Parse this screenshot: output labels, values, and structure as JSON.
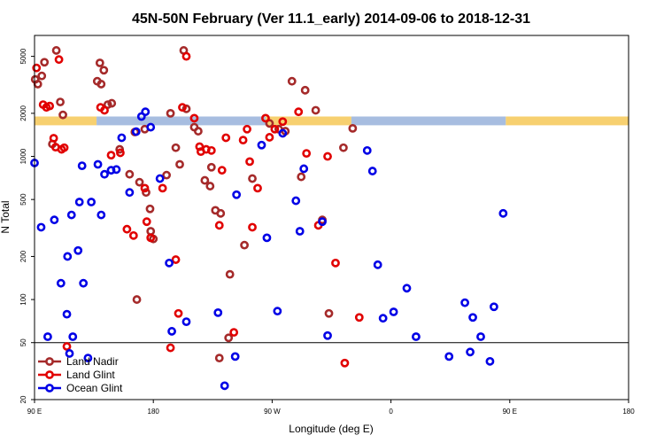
{
  "chart_data": {
    "type": "scatter",
    "title": "45N-50N February (Ver 11.1_early)   2014-09-06 to 2018-12-31",
    "xlabel": "Longitude (deg E)",
    "ylabel": "N Total",
    "x_scale": "longitude, 90E to 180 wrapping around",
    "y_scale": "log",
    "ylim": [
      20,
      7000
    ],
    "x_ticks": [
      "90 E",
      "180",
      "90 W",
      "0",
      "90 E",
      "180"
    ],
    "y_ticks": [
      "20",
      "50",
      "100",
      "200",
      "500",
      "1000",
      "2000",
      "5000"
    ],
    "reference_line_y": 50,
    "band": {
      "y_range": [
        1650,
        1900
      ],
      "colors": [
        "#f7d070",
        "#a7bde0"
      ]
    },
    "legend": {
      "position": "bottom-left",
      "entries": [
        "Land Nadir",
        "Land Glint",
        "Ocean Glint"
      ]
    },
    "series": [
      {
        "name": "Land Nadir",
        "color": "#a52a2a",
        "points": [
          [
            90.5,
            3450
          ],
          [
            92.5,
            3200
          ],
          [
            95.5,
            3650
          ],
          [
            97.5,
            4550
          ],
          [
            103.5,
            1220
          ],
          [
            106.5,
            5500
          ],
          [
            109.5,
            2400
          ],
          [
            111.5,
            1950
          ],
          [
            137.5,
            3350
          ],
          [
            140.5,
            3200
          ],
          [
            139.5,
            4500
          ],
          [
            142.5,
            4000
          ],
          [
            145.5,
            2300
          ],
          [
            148.5,
            2350
          ],
          [
            154.5,
            1120
          ],
          [
            162,
            750
          ],
          [
            166,
            1480
          ],
          [
            169.5,
            660
          ],
          [
            167.5,
            100
          ],
          [
            173.5,
            1550
          ],
          [
            174.5,
            560
          ],
          [
            177.5,
            430
          ],
          [
            178,
            300
          ],
          [
            180,
            265
          ],
          [
            -170,
            740
          ],
          [
            -167,
            2000
          ],
          [
            -163,
            1150
          ],
          [
            -160,
            880
          ],
          [
            -157,
            5500
          ],
          [
            -155,
            2150
          ],
          [
            -149,
            1600
          ],
          [
            -146,
            1500
          ],
          [
            -141,
            680
          ],
          [
            -137,
            620
          ],
          [
            -136,
            840
          ],
          [
            -133,
            420
          ],
          [
            -129,
            400
          ],
          [
            -130,
            39
          ],
          [
            -123,
            54
          ],
          [
            -122,
            150
          ],
          [
            -111,
            240
          ],
          [
            -105,
            700
          ],
          [
            -92,
            1700
          ],
          [
            -85,
            1550
          ],
          [
            -80,
            1500
          ],
          [
            -75,
            3350
          ],
          [
            -68,
            720
          ],
          [
            -65,
            2900
          ],
          [
            -57,
            2100
          ],
          [
            -52,
            360
          ],
          [
            -47,
            80
          ],
          [
            -36,
            1150
          ],
          [
            -29,
            1570
          ]
        ]
      },
      {
        "name": "Land Glint",
        "color": "#e10000",
        "points": [
          [
            91.5,
            4150
          ],
          [
            96.5,
            2300
          ],
          [
            99,
            2200
          ],
          [
            101.5,
            2250
          ],
          [
            104.5,
            1340
          ],
          [
            108.5,
            4750
          ],
          [
            106,
            1160
          ],
          [
            110.5,
            1120
          ],
          [
            112.5,
            1150
          ],
          [
            114.5,
            47
          ],
          [
            140,
            2200
          ],
          [
            143,
            2100
          ],
          [
            148,
            1020
          ],
          [
            155,
            1060
          ],
          [
            160,
            310
          ],
          [
            165,
            280
          ],
          [
            173.5,
            600
          ],
          [
            175,
            350
          ],
          [
            178,
            270
          ],
          [
            -173,
            600
          ],
          [
            -167,
            46
          ],
          [
            -163,
            190
          ],
          [
            -161,
            80
          ],
          [
            -158,
            2200
          ],
          [
            -155,
            5000
          ],
          [
            -149,
            1850
          ],
          [
            -145,
            1170
          ],
          [
            -144,
            1080
          ],
          [
            -140,
            1120
          ],
          [
            -136,
            1100
          ],
          [
            -130,
            330
          ],
          [
            -128,
            800
          ],
          [
            -125,
            1350
          ],
          [
            -119,
            59
          ],
          [
            -112,
            1300
          ],
          [
            -109,
            1550
          ],
          [
            -107,
            920
          ],
          [
            -105,
            320
          ],
          [
            -101,
            600
          ],
          [
            -95,
            1850
          ],
          [
            -92,
            1360
          ],
          [
            -88,
            1550
          ],
          [
            -82,
            1750
          ],
          [
            -70,
            2050
          ],
          [
            -64,
            1050
          ],
          [
            -55,
            330
          ],
          [
            -48,
            1000
          ],
          [
            -42,
            180
          ],
          [
            -35,
            36
          ],
          [
            -24,
            75
          ]
        ]
      },
      {
        "name": "Ocean Glint",
        "color": "#0000e6",
        "points": [
          [
            114.5,
            79
          ],
          [
            116.5,
            42
          ],
          [
            119,
            55
          ],
          [
            123,
            220
          ],
          [
            127,
            130
          ],
          [
            130.5,
            39
          ],
          [
            133,
            480
          ],
          [
            138,
            880
          ],
          [
            140.5,
            390
          ],
          [
            143,
            750
          ],
          [
            148,
            800
          ],
          [
            152,
            810
          ],
          [
            156,
            1350
          ],
          [
            162,
            560
          ],
          [
            167,
            1490
          ],
          [
            171,
            1900
          ],
          [
            174,
            2050
          ],
          [
            178,
            1600
          ],
          [
            -175,
            700
          ],
          [
            -168,
            180
          ],
          [
            -166,
            60
          ],
          [
            -155,
            70
          ],
          [
            -131,
            81
          ],
          [
            -126,
            25
          ],
          [
            -118,
            40
          ],
          [
            -117,
            540
          ],
          [
            -98,
            1200
          ],
          [
            -94,
            270
          ],
          [
            -86,
            83
          ],
          [
            -82,
            1450
          ],
          [
            -72,
            490
          ],
          [
            -69,
            300
          ],
          [
            -66,
            820
          ],
          [
            -52,
            350
          ],
          [
            -48,
            56
          ],
          [
            -18,
            1100
          ],
          [
            -14,
            790
          ],
          [
            -10,
            175
          ],
          [
            -6,
            74
          ],
          [
            2,
            82
          ],
          [
            12,
            120
          ],
          [
            19,
            55
          ],
          [
            44,
            40
          ],
          [
            56,
            95
          ],
          [
            60,
            43
          ],
          [
            62,
            75
          ],
          [
            68,
            55
          ],
          [
            75,
            37
          ],
          [
            78,
            89
          ],
          [
            85,
            400
          ],
          [
            90,
            900
          ],
          [
            95,
            320
          ],
          [
            100,
            55
          ],
          [
            105,
            360
          ],
          [
            110,
            130
          ],
          [
            115,
            200
          ],
          [
            118,
            390
          ],
          [
            124,
            480
          ],
          [
            126,
            860
          ]
        ]
      }
    ]
  }
}
